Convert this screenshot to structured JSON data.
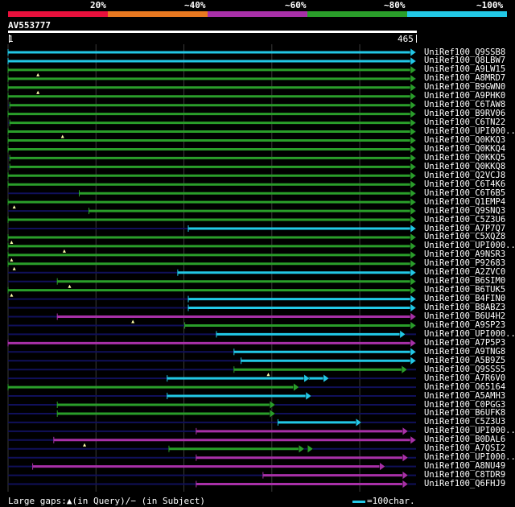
{
  "legend": [
    {
      "label": "",
      "color": "#e8103c"
    },
    {
      "label": "20%",
      "color": "#e8103c"
    },
    {
      "label": "",
      "color": "#e87820"
    },
    {
      "label": "~40%",
      "color": "#e87820"
    },
    {
      "label": "~60%",
      "color": "#a830a8"
    },
    {
      "label": "~80%",
      "color": "#2a9e2a"
    },
    {
      "label": "~100%",
      "color": "#22c8e6"
    }
  ],
  "query": {
    "name": "AV553777",
    "start": "1",
    "end": "465"
  },
  "footer": {
    "gaps_text": "Large gaps:▲(in Query)/− (in Subject)",
    "scale_text": "=100char."
  },
  "colors": {
    "cyan": "#22c8e6",
    "green": "#2a9e2a",
    "magenta": "#a830a8",
    "navy": "#10105a"
  },
  "hits": [
    {
      "name": "UniRef100_Q9SSB8",
      "color": "cyan",
      "start": 1,
      "end": 465
    },
    {
      "name": "UniRef100_Q8LBW7",
      "color": "cyan",
      "start": 1,
      "end": 465
    },
    {
      "name": "UniRef100_A9LW15",
      "color": "green",
      "start": 1,
      "end": 465,
      "gap": 35
    },
    {
      "name": "UniRef100_A8MRD7",
      "color": "green",
      "start": 1,
      "end": 465
    },
    {
      "name": "UniRef100_B9GWN0",
      "color": "green",
      "start": 1,
      "end": 465,
      "gap": 35
    },
    {
      "name": "UniRef100_A9PHK0",
      "color": "green",
      "start": 1,
      "end": 465
    },
    {
      "name": "UniRef100_C6TAW8",
      "color": "green",
      "start": 3,
      "end": 465
    },
    {
      "name": "UniRef100_B9RV06",
      "color": "green",
      "start": 1,
      "end": 465
    },
    {
      "name": "UniRef100_C6TN22",
      "color": "green",
      "start": 3,
      "end": 465
    },
    {
      "name": "UniRef100_UPI000...",
      "color": "green",
      "start": 1,
      "end": 465,
      "gap": 63
    },
    {
      "name": "UniRef100_Q0KKQ3",
      "color": "green",
      "start": 1,
      "end": 465
    },
    {
      "name": "UniRef100_Q0KKQ4",
      "color": "green",
      "start": 1,
      "end": 465
    },
    {
      "name": "UniRef100_Q0KKQ5",
      "color": "green",
      "start": 3,
      "end": 465
    },
    {
      "name": "UniRef100_Q0KKQ8",
      "color": "green",
      "start": 3,
      "end": 465
    },
    {
      "name": "UniRef100_Q2VCJ8",
      "color": "green",
      "start": 1,
      "end": 465
    },
    {
      "name": "UniRef100_C6T4K6",
      "color": "green",
      "start": 1,
      "end": 465
    },
    {
      "name": "UniRef100_C6T6B5",
      "color": "green",
      "start": 82,
      "end": 465
    },
    {
      "name": "UniRef100_Q1EMP4",
      "color": "green",
      "start": 1,
      "end": 465,
      "gap": 8
    },
    {
      "name": "UniRef100_Q9SNQ3",
      "color": "green",
      "start": 93,
      "end": 465
    },
    {
      "name": "UniRef100_C5Z3U6",
      "color": "green",
      "start": 1,
      "end": 465
    },
    {
      "name": "UniRef100_A7P7Q7",
      "color": "cyan",
      "start": 206,
      "end": 465
    },
    {
      "name": "UniRef100_C5XQZ8",
      "color": "green",
      "start": 1,
      "end": 465,
      "gap": 5
    },
    {
      "name": "UniRef100_UPI000...",
      "color": "green",
      "start": 1,
      "end": 465,
      "gap": 65
    },
    {
      "name": "UniRef100_A9NSR3",
      "color": "green",
      "start": 1,
      "end": 465,
      "gap": 5
    },
    {
      "name": "UniRef100_P92683",
      "color": "green",
      "start": 1,
      "end": 465,
      "gap": 8
    },
    {
      "name": "UniRef100_A2ZVC0",
      "color": "cyan",
      "start": 194,
      "end": 465
    },
    {
      "name": "UniRef100_B6SIM0",
      "color": "green",
      "start": 57,
      "end": 465,
      "gap": 71
    },
    {
      "name": "UniRef100_B6TUK5",
      "color": "green",
      "start": 1,
      "end": 465,
      "gap": 5
    },
    {
      "name": "UniRef100_B4FIN0",
      "color": "cyan",
      "start": 206,
      "end": 465
    },
    {
      "name": "UniRef100_B8ABZ3",
      "color": "cyan",
      "start": 206,
      "end": 465
    },
    {
      "name": "UniRef100_B6U4H2",
      "color": "magenta",
      "start": 57,
      "end": 465,
      "gap": 143
    },
    {
      "name": "UniRef100_A9SP23",
      "color": "green",
      "start": 202,
      "end": 465
    },
    {
      "name": "UniRef100_UPI000...",
      "color": "cyan",
      "start": 238,
      "end": 453
    },
    {
      "name": "UniRef100_A7P5P3",
      "color": "magenta",
      "start": 1,
      "end": 465
    },
    {
      "name": "UniRef100_A9TNG8",
      "color": "cyan",
      "start": 258,
      "end": 465
    },
    {
      "name": "UniRef100_A5B9Z5",
      "color": "cyan",
      "start": 266,
      "end": 465
    },
    {
      "name": "UniRef100_Q9SSS5",
      "color": "green",
      "start": 258,
      "end": 455,
      "gap": 297
    },
    {
      "name": "UniRef100_A7R6V0",
      "color": "cyan",
      "start": 182,
      "end": 366,
      "extra": 344
    },
    {
      "name": "UniRef100_O65164",
      "color": "green",
      "start": 1,
      "end": 332
    },
    {
      "name": "UniRef100_A5AMH3",
      "color": "cyan",
      "start": 182,
      "end": 346
    },
    {
      "name": "UniRef100_C0PGG3",
      "color": "green",
      "start": 57,
      "end": 305
    },
    {
      "name": "UniRef100_B6UFK8",
      "color": "green",
      "start": 57,
      "end": 305
    },
    {
      "name": "UniRef100_C5Z3U3",
      "color": "cyan",
      "start": 308,
      "end": 403
    },
    {
      "name": "UniRef100_UPI000...",
      "color": "magenta",
      "start": 215,
      "end": 456
    },
    {
      "name": "UniRef100_B0DAL6",
      "color": "magenta",
      "start": 53,
      "end": 465,
      "gap": 88
    },
    {
      "name": "UniRef100_A7QSI2",
      "color": "green",
      "start": 184,
      "end": 338,
      "extra": 348
    },
    {
      "name": "UniRef100_UPI000...",
      "color": "magenta",
      "start": 215,
      "end": 456
    },
    {
      "name": "UniRef100_A8NU49",
      "color": "magenta",
      "start": 29,
      "end": 430
    },
    {
      "name": "UniRef100_C8TDR9",
      "color": "magenta",
      "start": 291,
      "end": 456
    },
    {
      "name": "UniRef100_Q6FHJ9",
      "color": "magenta",
      "start": 215,
      "end": 456
    }
  ]
}
